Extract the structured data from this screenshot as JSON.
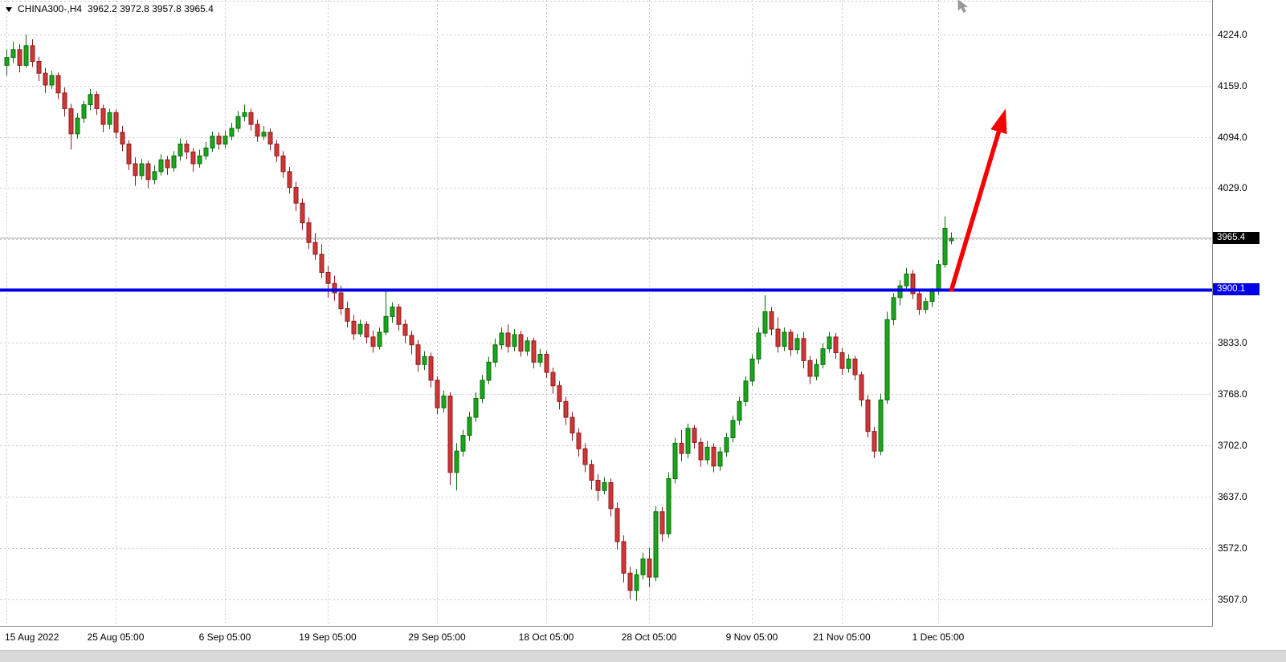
{
  "header": {
    "symbol_label": "CHINA300-,H4",
    "ohlc_values": "3962.2 3972.8 3957.8 3965.4"
  },
  "chart_data": {
    "type": "candlestick",
    "symbol": "CHINA300-",
    "timeframe": "H4",
    "title": "CHINA300-,H4",
    "current_bar": {
      "open": 3962.2,
      "high": 3972.8,
      "low": 3957.8,
      "close": 3965.4
    },
    "y_axis": {
      "price_top": 4268,
      "price_bottom": 3473,
      "labels": [
        {
          "text": "4224.0",
          "price": 4224.0
        },
        {
          "text": "4159.0",
          "price": 4159.0
        },
        {
          "text": "4094.0",
          "price": 4094.0
        },
        {
          "text": "4029.0",
          "price": 4029.0
        },
        {
          "text": "3833.0",
          "price": 3833.0
        },
        {
          "text": "3768.0",
          "price": 3768.0
        },
        {
          "text": "3702.0",
          "price": 3702.0
        },
        {
          "text": "3637.0",
          "price": 3637.0
        },
        {
          "text": "3572.0",
          "price": 3572.0
        },
        {
          "text": "3507.0",
          "price": 3507.0
        }
      ]
    },
    "grid_prices": [
      4224,
      4159,
      4094,
      4029,
      3964,
      3899,
      3833,
      3768,
      3702,
      3637,
      3572,
      3507
    ],
    "x_axis": {
      "ticks": [
        {
          "label": "15 Aug 2022",
          "index": 0
        },
        {
          "label": "25 Aug 05:00",
          "index": 17
        },
        {
          "label": "6 Sep 05:00",
          "index": 34
        },
        {
          "label": "19 Sep 05:00",
          "index": 50
        },
        {
          "label": "29 Sep 05:00",
          "index": 67
        },
        {
          "label": "18 Oct 05:00",
          "index": 84
        },
        {
          "label": "28 Oct 05:00",
          "index": 100
        },
        {
          "label": "9 Nov 05:00",
          "index": 116
        },
        {
          "label": "21 Nov 05:00",
          "index": 130
        },
        {
          "label": "1 Dec 05:00",
          "index": 145
        }
      ]
    },
    "annotations": {
      "horizontal_line": {
        "price": 3900.1,
        "label": "3900.1",
        "color": "#0000e6"
      },
      "current_price": {
        "price": 3965.4,
        "label": "3965.4",
        "line_color": "#a0a0a0",
        "tag_color": "#000000"
      },
      "arrow": {
        "from_index": 147,
        "from_price": 3898,
        "to_index": 155.5,
        "to_price": 4130,
        "color": "#f60000"
      }
    },
    "colors": {
      "up": "#1ca51c",
      "up_dark": "#0b6e0b",
      "down": "#cd3737",
      "down_dark": "#8c1d1d",
      "grid": "#c8c8c8",
      "axis_border": "#8a8a8a"
    },
    "candles": [
      [
        4185,
        4205,
        4172,
        4195
      ],
      [
        4195,
        4215,
        4188,
        4205
      ],
      [
        4205,
        4212,
        4176,
        4185
      ],
      [
        4185,
        4224,
        4182,
        4210
      ],
      [
        4210,
        4218,
        4183,
        4190
      ],
      [
        4190,
        4196,
        4165,
        4175
      ],
      [
        4175,
        4182,
        4150,
        4160
      ],
      [
        4160,
        4178,
        4155,
        4172
      ],
      [
        4172,
        4176,
        4142,
        4150
      ],
      [
        4150,
        4157,
        4120,
        4130
      ],
      [
        4130,
        4136,
        4078,
        4098
      ],
      [
        4098,
        4124,
        4092,
        4118
      ],
      [
        4118,
        4140,
        4112,
        4135
      ],
      [
        4135,
        4155,
        4128,
        4148
      ],
      [
        4148,
        4152,
        4122,
        4130
      ],
      [
        4130,
        4135,
        4100,
        4110
      ],
      [
        4110,
        4130,
        4104,
        4125
      ],
      [
        4125,
        4129,
        4092,
        4100
      ],
      [
        4100,
        4108,
        4076,
        4085
      ],
      [
        4085,
        4090,
        4052,
        4060
      ],
      [
        4060,
        4068,
        4032,
        4045
      ],
      [
        4045,
        4066,
        4040,
        4060
      ],
      [
        4060,
        4064,
        4029,
        4040
      ],
      [
        4040,
        4058,
        4034,
        4050
      ],
      [
        4050,
        4072,
        4045,
        4065
      ],
      [
        4065,
        4070,
        4046,
        4055
      ],
      [
        4055,
        4076,
        4050,
        4070
      ],
      [
        4070,
        4092,
        4064,
        4085
      ],
      [
        4085,
        4090,
        4066,
        4075
      ],
      [
        4075,
        4080,
        4050,
        4060
      ],
      [
        4060,
        4078,
        4055,
        4070
      ],
      [
        4070,
        4088,
        4065,
        4080
      ],
      [
        4080,
        4101,
        4075,
        4095
      ],
      [
        4095,
        4100,
        4078,
        4085
      ],
      [
        4085,
        4102,
        4080,
        4095
      ],
      [
        4095,
        4112,
        4090,
        4105
      ],
      [
        4105,
        4127,
        4100,
        4120
      ],
      [
        4120,
        4135,
        4114,
        4125
      ],
      [
        4125,
        4130,
        4102,
        4110
      ],
      [
        4110,
        4116,
        4088,
        4095
      ],
      [
        4095,
        4108,
        4090,
        4100
      ],
      [
        4100,
        4105,
        4077,
        4085
      ],
      [
        4085,
        4090,
        4062,
        4070
      ],
      [
        4070,
        4076,
        4042,
        4050
      ],
      [
        4050,
        4056,
        4022,
        4030
      ],
      [
        4030,
        4037,
        4000,
        4010
      ],
      [
        4010,
        4016,
        3976,
        3985
      ],
      [
        3985,
        3992,
        3952,
        3960
      ],
      [
        3960,
        3972,
        3938,
        3945
      ],
      [
        3945,
        3958,
        3915,
        3922
      ],
      [
        3922,
        3930,
        3890,
        3908
      ],
      [
        3908,
        3918,
        3886,
        3896
      ],
      [
        3896,
        3905,
        3868,
        3876
      ],
      [
        3876,
        3885,
        3852,
        3860
      ],
      [
        3860,
        3868,
        3836,
        3844
      ],
      [
        3844,
        3862,
        3840,
        3856
      ],
      [
        3856,
        3860,
        3832,
        3840
      ],
      [
        3840,
        3848,
        3820,
        3828
      ],
      [
        3828,
        3852,
        3824,
        3846
      ],
      [
        3846,
        3898,
        3842,
        3866
      ],
      [
        3866,
        3884,
        3858,
        3878
      ],
      [
        3878,
        3882,
        3848,
        3856
      ],
      [
        3856,
        3862,
        3832,
        3842
      ],
      [
        3842,
        3848,
        3818,
        3830
      ],
      [
        3830,
        3836,
        3796,
        3805
      ],
      [
        3805,
        3822,
        3798,
        3815
      ],
      [
        3815,
        3820,
        3776,
        3785
      ],
      [
        3785,
        3790,
        3742,
        3750
      ],
      [
        3750,
        3772,
        3744,
        3765
      ],
      [
        3765,
        3770,
        3652,
        3668
      ],
      [
        3668,
        3705,
        3645,
        3695
      ],
      [
        3695,
        3722,
        3688,
        3715
      ],
      [
        3715,
        3745,
        3708,
        3738
      ],
      [
        3738,
        3770,
        3732,
        3762
      ],
      [
        3762,
        3792,
        3756,
        3785
      ],
      [
        3785,
        3815,
        3780,
        3808
      ],
      [
        3808,
        3838,
        3802,
        3830
      ],
      [
        3830,
        3852,
        3824,
        3845
      ],
      [
        3845,
        3856,
        3820,
        3828
      ],
      [
        3828,
        3850,
        3822,
        3843
      ],
      [
        3843,
        3848,
        3815,
        3822
      ],
      [
        3822,
        3840,
        3816,
        3835
      ],
      [
        3835,
        3839,
        3800,
        3808
      ],
      [
        3808,
        3825,
        3802,
        3818
      ],
      [
        3818,
        3822,
        3788,
        3795
      ],
      [
        3795,
        3801,
        3768,
        3778
      ],
      [
        3778,
        3784,
        3748,
        3758
      ],
      [
        3758,
        3764,
        3728,
        3738
      ],
      [
        3738,
        3745,
        3708,
        3718
      ],
      [
        3718,
        3724,
        3688,
        3698
      ],
      [
        3698,
        3705,
        3668,
        3678
      ],
      [
        3678,
        3684,
        3646,
        3658
      ],
      [
        3658,
        3666,
        3632,
        3645
      ],
      [
        3645,
        3662,
        3640,
        3655
      ],
      [
        3655,
        3660,
        3612,
        3622
      ],
      [
        3622,
        3630,
        3570,
        3580
      ],
      [
        3580,
        3588,
        3528,
        3540
      ],
      [
        3540,
        3548,
        3507,
        3518
      ],
      [
        3518,
        3545,
        3505,
        3538
      ],
      [
        3538,
        3566,
        3532,
        3558
      ],
      [
        3558,
        3572,
        3522,
        3535
      ],
      [
        3535,
        3625,
        3530,
        3618
      ],
      [
        3618,
        3624,
        3580,
        3590
      ],
      [
        3590,
        3668,
        3585,
        3660
      ],
      [
        3660,
        3712,
        3654,
        3705
      ],
      [
        3705,
        3722,
        3682,
        3692
      ],
      [
        3692,
        3730,
        3686,
        3724
      ],
      [
        3724,
        3728,
        3698,
        3706
      ],
      [
        3706,
        3712,
        3675,
        3684
      ],
      [
        3684,
        3708,
        3678,
        3700
      ],
      [
        3700,
        3705,
        3668,
        3676
      ],
      [
        3676,
        3700,
        3670,
        3694
      ],
      [
        3694,
        3718,
        3688,
        3712
      ],
      [
        3712,
        3740,
        3706,
        3734
      ],
      [
        3734,
        3764,
        3728,
        3758
      ],
      [
        3758,
        3790,
        3752,
        3784
      ],
      [
        3784,
        3818,
        3778,
        3812
      ],
      [
        3812,
        3852,
        3806,
        3845
      ],
      [
        3845,
        3893,
        3840,
        3872
      ],
      [
        3872,
        3878,
        3842,
        3850
      ],
      [
        3850,
        3865,
        3820,
        3828
      ],
      [
        3828,
        3852,
        3822,
        3846
      ],
      [
        3846,
        3850,
        3816,
        3824
      ],
      [
        3824,
        3844,
        3818,
        3838
      ],
      [
        3838,
        3846,
        3800,
        3810
      ],
      [
        3810,
        3816,
        3780,
        3790
      ],
      [
        3790,
        3812,
        3785,
        3805
      ],
      [
        3805,
        3832,
        3800,
        3825
      ],
      [
        3825,
        3846,
        3820,
        3840
      ],
      [
        3840,
        3845,
        3812,
        3820
      ],
      [
        3820,
        3826,
        3792,
        3800
      ],
      [
        3800,
        3818,
        3795,
        3812
      ],
      [
        3812,
        3816,
        3785,
        3792
      ],
      [
        3792,
        3796,
        3752,
        3760
      ],
      [
        3760,
        3766,
        3712,
        3720
      ],
      [
        3720,
        3726,
        3686,
        3695
      ],
      [
        3695,
        3768,
        3690,
        3760
      ],
      [
        3760,
        3872,
        3755,
        3862
      ],
      [
        3862,
        3896,
        3855,
        3890
      ],
      [
        3890,
        3912,
        3880,
        3905
      ],
      [
        3905,
        3928,
        3898,
        3920
      ],
      [
        3920,
        3925,
        3888,
        3895
      ],
      [
        3895,
        3900,
        3868,
        3875
      ],
      [
        3875,
        3890,
        3870,
        3885
      ],
      [
        3885,
        3902,
        3878,
        3898
      ],
      [
        3898,
        3938,
        3893,
        3932
      ],
      [
        3932,
        3993,
        3928,
        3978
      ],
      [
        3962.2,
        3972.8,
        3957.8,
        3965.4
      ]
    ]
  }
}
